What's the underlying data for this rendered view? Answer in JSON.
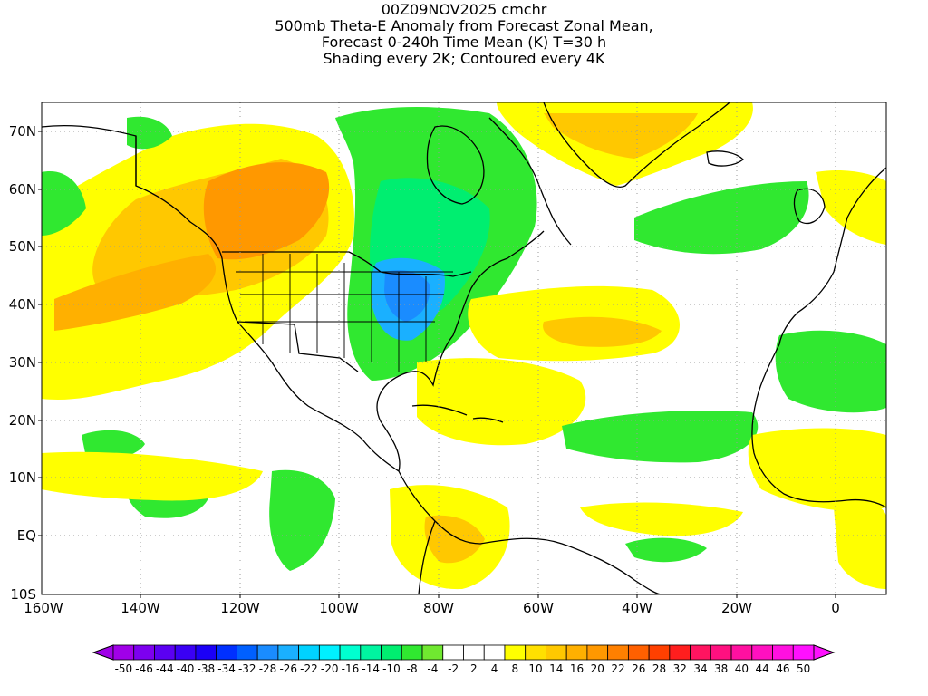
{
  "title": {
    "lines": [
      "00Z09NOV2025 cmchr",
      "500mb Theta-E Anomaly from Forecast Zonal Mean,",
      "Forecast 0-240h Time Mean (K) T=30 h",
      "Shading every 2K; Contoured every 4K"
    ]
  },
  "axes": {
    "lat_labels": [
      "70N",
      "60N",
      "50N",
      "40N",
      "30N",
      "20N",
      "10N",
      "EQ",
      "10S"
    ],
    "lat_values": [
      70,
      60,
      50,
      40,
      30,
      20,
      10,
      0,
      -10
    ],
    "lon_labels": [
      "160W",
      "140W",
      "120W",
      "100W",
      "80W",
      "60W",
      "40W",
      "20W",
      "0"
    ],
    "lon_values": [
      -160,
      -140,
      -120,
      -100,
      -80,
      -60,
      -40,
      -20,
      0
    ],
    "lon_range": [
      -160,
      10
    ],
    "lat_range": [
      -10,
      75
    ],
    "grid": "dotted"
  },
  "colorbar": {
    "labels": [
      "-50",
      "-46",
      "-44",
      "-40",
      "-38",
      "-34",
      "-32",
      "-28",
      "-26",
      "-22",
      "-20",
      "-16",
      "-14",
      "-10",
      "-8",
      "-4",
      "-2",
      "2",
      "4",
      "8",
      "10",
      "14",
      "16",
      "20",
      "22",
      "26",
      "28",
      "32",
      "34",
      "38",
      "40",
      "44",
      "46",
      "50"
    ],
    "colors": [
      "#a000e8",
      "#7d00ef",
      "#5b00f2",
      "#3a00f5",
      "#1b00f7",
      "#0030ff",
      "#0060ff",
      "#1a8cff",
      "#1ab0ff",
      "#00d2ff",
      "#00f0ff",
      "#00ffd0",
      "#00f5a0",
      "#00ee70",
      "#30e830",
      "#70e830",
      "#ffffff",
      "#ffffff",
      "#ffffff",
      "#ffff00",
      "#ffe000",
      "#ffc800",
      "#ffb000",
      "#ff9800",
      "#ff8000",
      "#ff6000",
      "#ff4000",
      "#ff1e1e",
      "#ff1460",
      "#ff1080",
      "#ff10a0",
      "#ff10c0",
      "#ff10e0",
      "#ff10ff"
    ],
    "arrow_left_color": "#a000e8",
    "arrow_right_color": "#ff10ff"
  },
  "legend_colors": {
    "negative_strong": "#30e830",
    "negative_weak": "#70e830",
    "negative_core": "#1a8cff",
    "positive_weak": "#ffff00",
    "positive_mid": "#ffe000",
    "positive_strong": "#ff9800",
    "land_outline": "#000000"
  }
}
